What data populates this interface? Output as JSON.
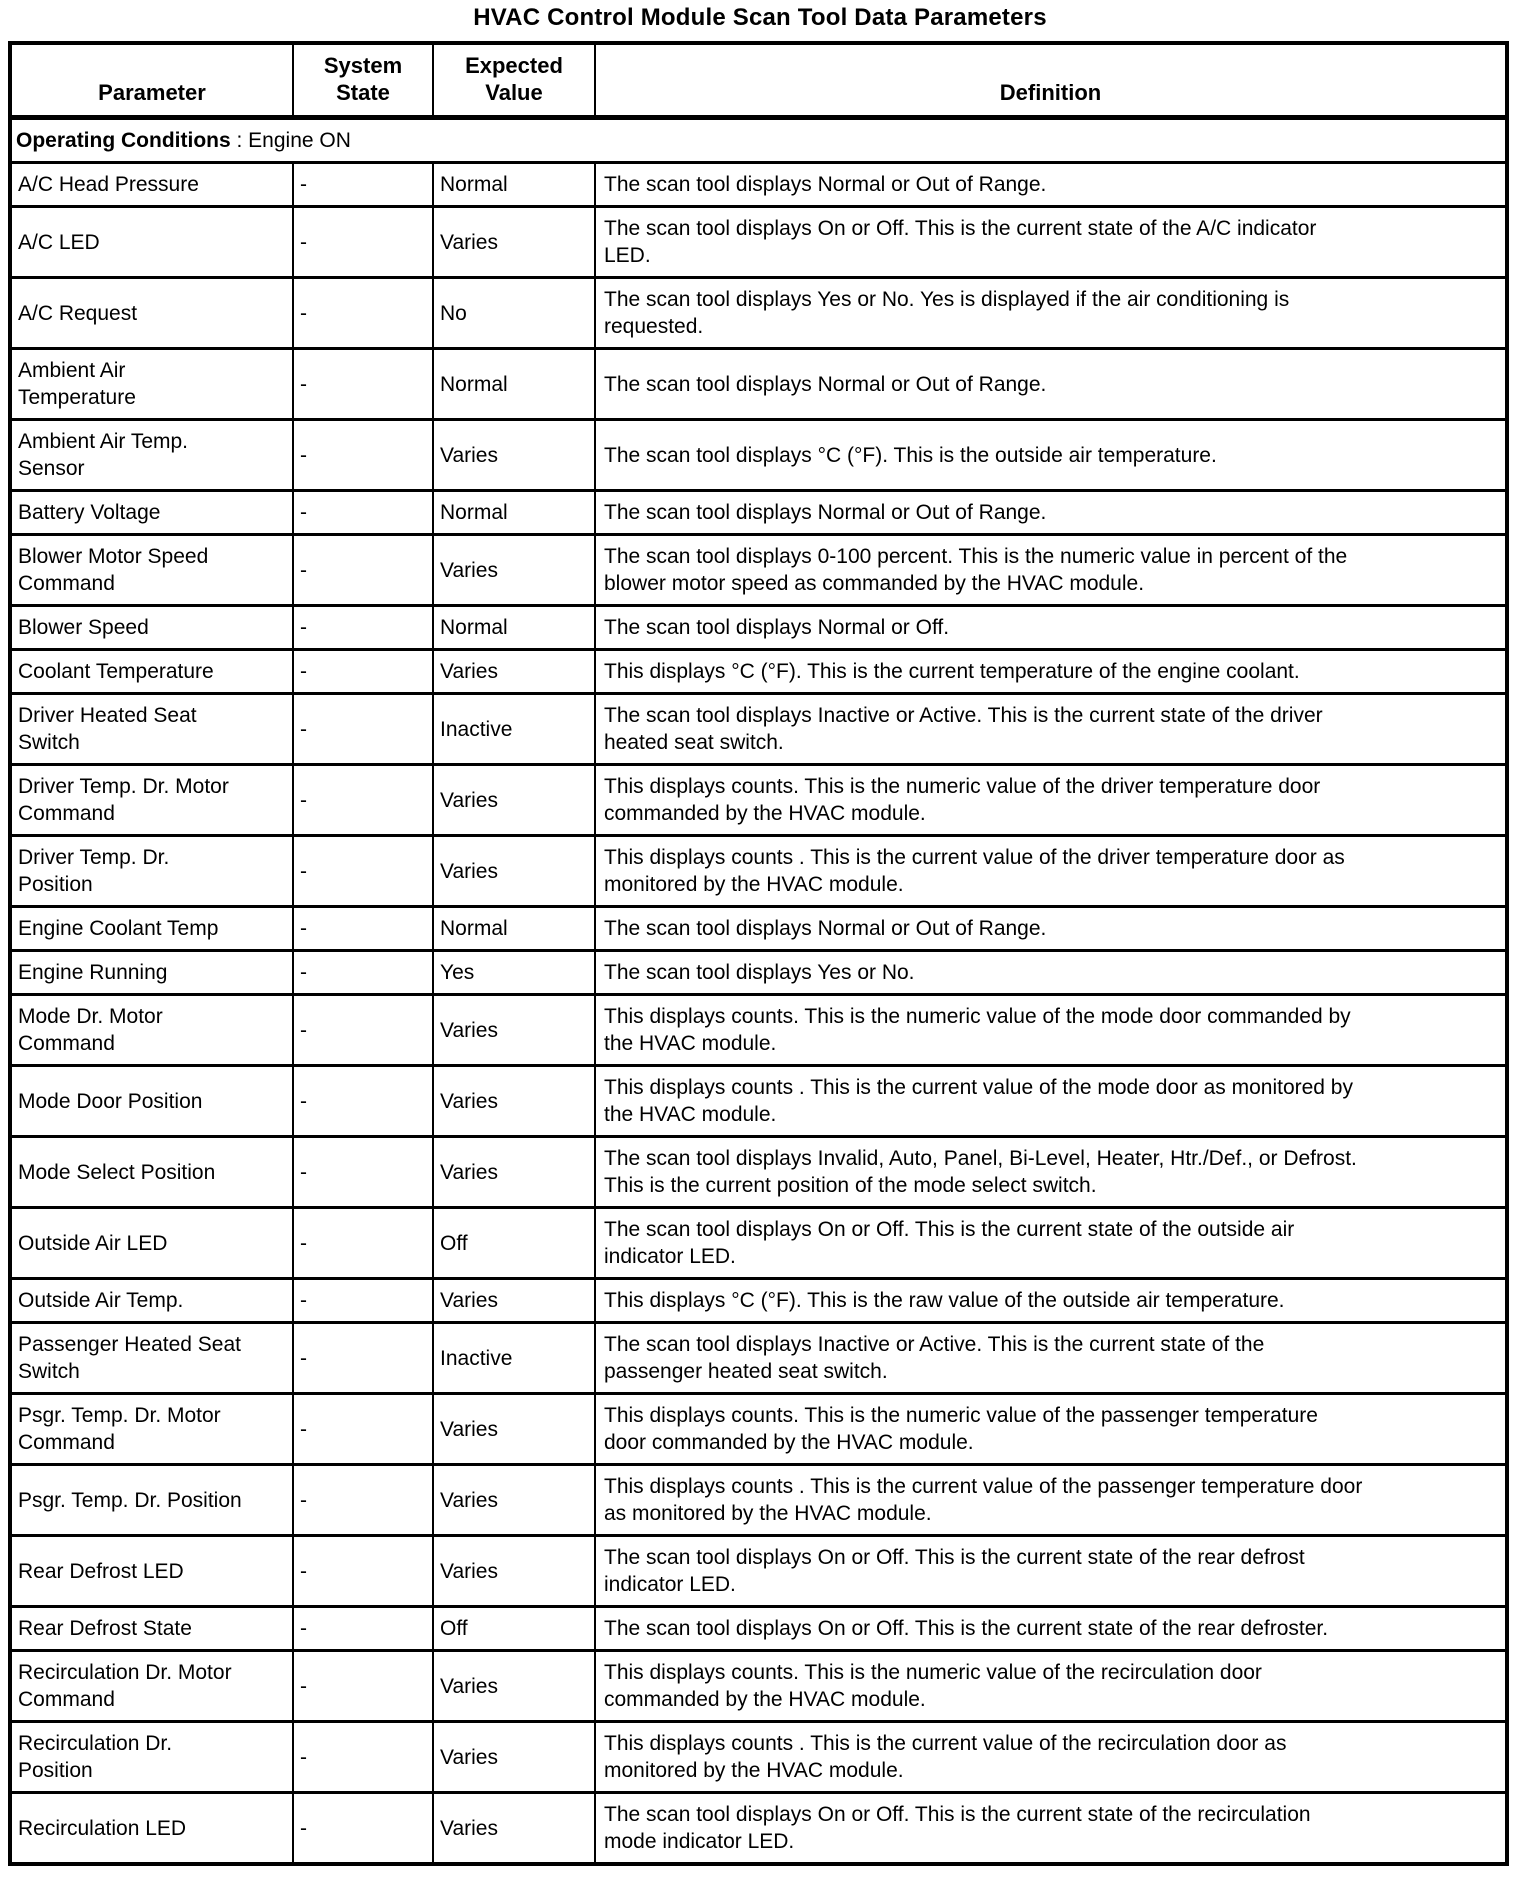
{
  "title": "HVAC Control Module Scan Tool Data Parameters",
  "colors": {
    "text": "#000000",
    "background": "#ffffff",
    "border": "#000000"
  },
  "table": {
    "headers": {
      "parameter": "Parameter",
      "system_state": "System\nState",
      "expected_value": "Expected\nValue",
      "definition": "Definition"
    },
    "section": {
      "label_bold": "Operating Conditions",
      "label_rest": " : Engine ON"
    },
    "rows": [
      {
        "parameter": "A/C Head Pressure",
        "state": "-",
        "value": "Normal",
        "definition": "The scan tool displays Normal or Out of Range."
      },
      {
        "parameter": "A/C LED",
        "state": "-",
        "value": "Varies",
        "definition": "The scan tool displays On or Off. This is the current state of the A/C indicator\nLED."
      },
      {
        "parameter": "A/C Request",
        "state": "-",
        "value": "No",
        "definition": "The scan tool displays Yes or No. Yes is displayed if the air conditioning is\nrequested."
      },
      {
        "parameter": "Ambient Air\nTemperature",
        "state": "-",
        "value": "Normal",
        "definition": "The scan tool displays Normal or Out of Range."
      },
      {
        "parameter": "Ambient Air Temp.\nSensor",
        "state": "-",
        "value": "Varies",
        "definition": "The scan tool displays °C (°F). This is the outside air temperature."
      },
      {
        "parameter": "Battery Voltage",
        "state": "-",
        "value": "Normal",
        "definition": "The scan tool displays Normal or Out of Range."
      },
      {
        "parameter": "Blower Motor Speed\nCommand",
        "state": "-",
        "value": "Varies",
        "definition": "The scan tool displays 0-100 percent. This is the numeric value in percent of the\nblower motor speed as commanded by the HVAC module."
      },
      {
        "parameter": "Blower Speed",
        "state": "-",
        "value": "Normal",
        "definition": "The scan tool displays Normal or Off."
      },
      {
        "parameter": "Coolant Temperature",
        "state": "-",
        "value": "Varies",
        "definition": "This displays °C (°F). This is the current temperature of the engine coolant."
      },
      {
        "parameter": "Driver Heated Seat\nSwitch",
        "state": "-",
        "value": "Inactive",
        "definition": "The scan tool displays Inactive or Active. This is the current state of the driver\nheated seat switch."
      },
      {
        "parameter": "Driver Temp. Dr. Motor\nCommand",
        "state": "-",
        "value": "Varies",
        "definition": "This displays counts. This is the numeric value of the driver temperature door\ncommanded by the HVAC module."
      },
      {
        "parameter": "Driver Temp. Dr.\nPosition",
        "state": "-",
        "value": "Varies",
        "definition": "This displays counts . This is the current value of the driver temperature door as\nmonitored by the HVAC module."
      },
      {
        "parameter": "Engine Coolant Temp",
        "state": "-",
        "value": "Normal",
        "definition": "The scan tool displays Normal or Out of Range."
      },
      {
        "parameter": "Engine Running",
        "state": "-",
        "value": "Yes",
        "definition": "The scan tool displays Yes or No."
      },
      {
        "parameter": "Mode Dr. Motor\nCommand",
        "state": "-",
        "value": "Varies",
        "definition": "This displays counts. This is the numeric value of the mode door commanded by\nthe HVAC module."
      },
      {
        "parameter": "Mode Door Position",
        "state": "-",
        "value": "Varies",
        "definition": "This displays counts . This is the current value of the mode door as monitored by\nthe HVAC module."
      },
      {
        "parameter": "Mode Select Position",
        "state": "-",
        "value": "Varies",
        "definition": "The scan tool displays Invalid, Auto, Panel, Bi-Level, Heater, Htr./Def., or Defrost.\nThis is the current position of the mode select switch."
      },
      {
        "parameter": "Outside Air LED",
        "state": "-",
        "value": "Off",
        "definition": "The scan tool displays On or Off. This is the current state of the outside air\nindicator LED."
      },
      {
        "parameter": "Outside Air Temp.",
        "state": "-",
        "value": "Varies",
        "definition": "This displays °C (°F). This is the raw value of the outside air temperature."
      },
      {
        "parameter": "Passenger Heated Seat\nSwitch",
        "state": "-",
        "value": "Inactive",
        "definition": "The scan tool displays Inactive or Active. This is the current state of the\npassenger heated seat switch."
      },
      {
        "parameter": "Psgr. Temp. Dr. Motor\nCommand",
        "state": "-",
        "value": "Varies",
        "definition": "This displays counts. This is the numeric value of the passenger temperature\ndoor commanded by the HVAC module."
      },
      {
        "parameter": "Psgr. Temp. Dr. Position",
        "state": "-",
        "value": "Varies",
        "definition": "This displays counts . This is the current value of the passenger temperature door\nas monitored by the HVAC module."
      },
      {
        "parameter": "Rear Defrost LED",
        "state": "-",
        "value": "Varies",
        "definition": "The scan tool displays On or Off. This is the current state of the rear defrost\nindicator LED."
      },
      {
        "parameter": "Rear Defrost State",
        "state": "-",
        "value": "Off",
        "definition": "The scan tool displays On or Off. This is the current state of the rear defroster."
      },
      {
        "parameter": "Recirculation Dr. Motor\nCommand",
        "state": "-",
        "value": "Varies",
        "definition": "This displays counts. This is the numeric value of the recirculation door\ncommanded by the HVAC module."
      },
      {
        "parameter": "Recirculation Dr.\nPosition",
        "state": "-",
        "value": "Varies",
        "definition": "This displays counts . This is the current value of the recirculation door as\nmonitored by the HVAC module."
      },
      {
        "parameter": "Recirculation LED",
        "state": "-",
        "value": "Varies",
        "definition": "The scan tool displays On or Off. This is the current state of the recirculation\nmode indicator LED."
      }
    ]
  }
}
